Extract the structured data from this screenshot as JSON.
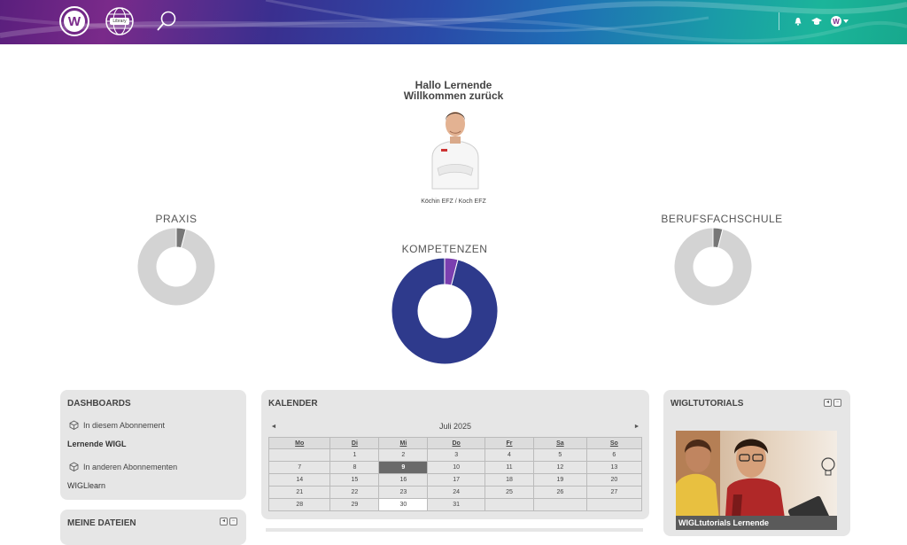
{
  "header": {
    "logo_letter": "W",
    "library_label": "Library"
  },
  "greeting": {
    "line1": "Hallo Lernende",
    "line2": "Willkommen zurück",
    "role": "Köchin EFZ / Koch EFZ"
  },
  "donuts": [
    {
      "title": "PRAXIS",
      "done": 0.04,
      "color_done": "#777777",
      "color_rest": "#d3d3d3"
    },
    {
      "title": "KOMPETENZEN",
      "done": 0.04,
      "color_done": "#7b3fb0",
      "color_rest": "#2e3a8c"
    },
    {
      "title": "BERUFSFACHSCHULE",
      "done": 0.04,
      "color_done": "#777777",
      "color_rest": "#d3d3d3"
    }
  ],
  "dashboards": {
    "title": "DASHBOARDS",
    "section1": "In diesem Abonnement",
    "link1": "Lernende WIGL",
    "section2": "In anderen Abonnementen",
    "link2": "WIGLlearn"
  },
  "files": {
    "title": "MEINE DATEIEN"
  },
  "calendar": {
    "title": "KALENDER",
    "month": "Juli 2025",
    "prev": "◄",
    "next": "►",
    "weekdays": [
      "Mo",
      "Di",
      "Mi",
      "Do",
      "Fr",
      "Sa",
      "So"
    ],
    "weeks": [
      [
        "",
        "1",
        "2",
        "3",
        "4",
        "5",
        "6"
      ],
      [
        "7",
        "8",
        "9",
        "10",
        "11",
        "12",
        "13"
      ],
      [
        "14",
        "15",
        "16",
        "17",
        "18",
        "19",
        "20"
      ],
      [
        "21",
        "22",
        "23",
        "24",
        "25",
        "26",
        "27"
      ],
      [
        "28",
        "29",
        "30",
        "31",
        "",
        "",
        ""
      ]
    ],
    "today": "9",
    "highlight": "30"
  },
  "tutorials": {
    "title": "WIGLTUTORIALS",
    "caption": "WIGLtutorials Lernende"
  },
  "controls": {
    "collapse": "◂",
    "minimize": "−"
  }
}
